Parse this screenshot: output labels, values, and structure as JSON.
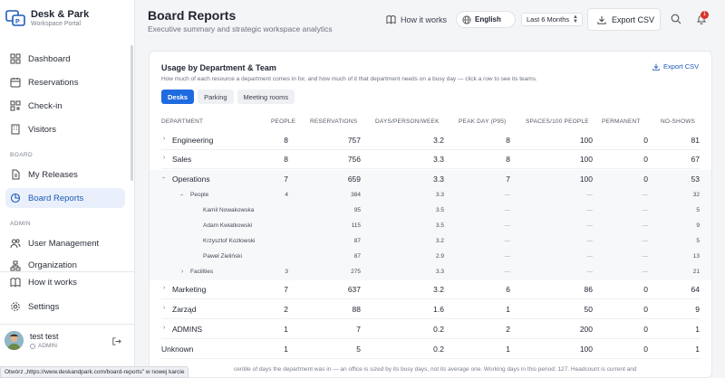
{
  "brand": {
    "name": "Desk & Park",
    "sub": "Workspace Portal"
  },
  "nav": {
    "dashboard": "Dashboard",
    "reservations": "Reservations",
    "checkin": "Check-in",
    "visitors": "Visitors",
    "section_board": "BOARD",
    "my_releases": "My Releases",
    "board_reports": "Board Reports",
    "section_admin": "ADMIN",
    "user_management": "User Management",
    "organization": "Organization",
    "how_it_works": "How it works",
    "settings": "Settings"
  },
  "user": {
    "name": "test test",
    "role": "ADMIN"
  },
  "header": {
    "title": "Board Reports",
    "subtitle": "Executive summary and strategic workspace analytics",
    "how_it_works": "How it works",
    "language": "English",
    "period": "Last 6 Months",
    "export": "Export CSV",
    "notifications": "1"
  },
  "card": {
    "title": "Usage by Department & Team",
    "description": "How much of each resource a department comes in for, and how much of it that department needs on a busy day — click a row to see its teams.",
    "export": "Export CSV",
    "tabs": [
      "Desks",
      "Parking",
      "Meeting rooms"
    ],
    "columns": [
      "DEPARTMENT",
      "PEOPLE",
      "RESERVATIONS",
      "DAYS/PERSON/WEEK",
      "PEAK DAY (P95)",
      "SPACES/100 PEOPLE",
      "PERMANENT",
      "NO-SHOWS"
    ],
    "rows": [
      {
        "name": "Engineering",
        "people": "8",
        "res": "757",
        "dpw": "3.2",
        "peak": "8",
        "spaces": "100",
        "perm": "0",
        "noshow": "81"
      },
      {
        "name": "Sales",
        "people": "8",
        "res": "756",
        "dpw": "3.3",
        "peak": "8",
        "spaces": "100",
        "perm": "0",
        "noshow": "67"
      },
      {
        "name": "Operations",
        "people": "7",
        "res": "659",
        "dpw": "3.3",
        "peak": "7",
        "spaces": "100",
        "perm": "0",
        "noshow": "53"
      },
      {
        "name": "People",
        "people": "4",
        "res": "384",
        "dpw": "3.3",
        "peak": "—",
        "spaces": "—",
        "perm": "—",
        "noshow": "32"
      },
      {
        "name": "Kamil Nowakowska",
        "people": "",
        "res": "95",
        "dpw": "3.5",
        "peak": "—",
        "spaces": "—",
        "perm": "—",
        "noshow": "5"
      },
      {
        "name": "Adam Kwiatkowski",
        "people": "",
        "res": "115",
        "dpw": "3.5",
        "peak": "—",
        "spaces": "—",
        "perm": "—",
        "noshow": "9"
      },
      {
        "name": "Krzysztof Kozłowski",
        "people": "",
        "res": "87",
        "dpw": "3.2",
        "peak": "—",
        "spaces": "—",
        "perm": "—",
        "noshow": "5"
      },
      {
        "name": "Paweł Zieliński",
        "people": "",
        "res": "87",
        "dpw": "2.9",
        "peak": "—",
        "spaces": "—",
        "perm": "—",
        "noshow": "13"
      },
      {
        "name": "Facilities",
        "people": "3",
        "res": "275",
        "dpw": "3.3",
        "peak": "—",
        "spaces": "—",
        "perm": "—",
        "noshow": "21"
      },
      {
        "name": "Marketing",
        "people": "7",
        "res": "637",
        "dpw": "3.2",
        "peak": "6",
        "spaces": "86",
        "perm": "0",
        "noshow": "64"
      },
      {
        "name": "Zarząd",
        "people": "2",
        "res": "88",
        "dpw": "1.6",
        "peak": "1",
        "spaces": "50",
        "perm": "0",
        "noshow": "9"
      },
      {
        "name": "ADMINS",
        "people": "1",
        "res": "7",
        "dpw": "0.2",
        "peak": "2",
        "spaces": "200",
        "perm": "0",
        "noshow": "1"
      },
      {
        "name": "Unknown",
        "people": "1",
        "res": "5",
        "dpw": "0.2",
        "peak": "1",
        "spaces": "100",
        "perm": "0",
        "noshow": "1"
      }
    ],
    "footnote": "centile of days the department was in — an office is sized by its busy days, not its average one. Working days in this period: 127. Headcount is current and"
  },
  "statusbar": "Otwórz „https://www.deskandpark.com/board-reports\" w nowej karcie",
  "colors": {
    "accent": "#1e6be0",
    "active_nav_bg": "#e9f0fb",
    "badge": "#d9342b"
  }
}
